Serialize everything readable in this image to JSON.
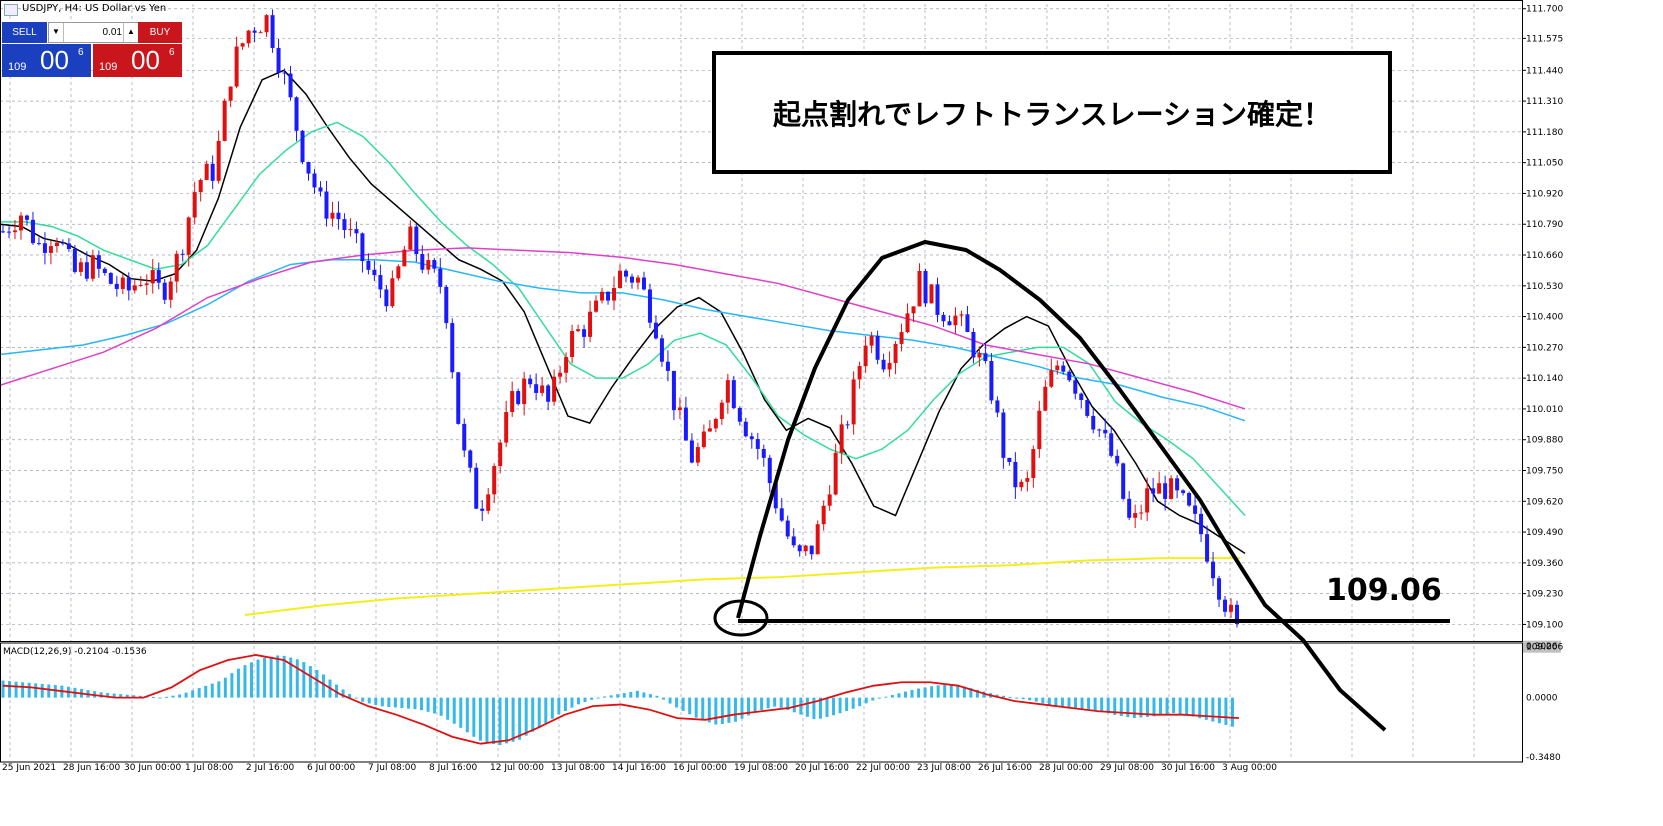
{
  "window": {
    "title": "USDJPY, H4:  US Dollar vs Yen"
  },
  "trade_panel": {
    "sell_label": "SELL",
    "buy_label": "BUY",
    "lot": "0.01",
    "sell_price": {
      "small": "109",
      "big": "00",
      "sup": "6"
    },
    "buy_price": {
      "small": "109",
      "big": "00",
      "sup": "6"
    },
    "sell_color": "#1a3fbf",
    "buy_color": "#c8161c"
  },
  "annotation": {
    "text": "起点割れでレフトトランスレーション確定！"
  },
  "level_label": "109.06",
  "chart_data": [
    {
      "type": "candlestick",
      "title": "",
      "symbol": "USDJPY",
      "timeframe": "H4",
      "current_price": "109.006",
      "y_ticks": [
        "111.700",
        "111.575",
        "111.440",
        "111.310",
        "111.180",
        "111.050",
        "110.920",
        "110.790",
        "110.660",
        "110.530",
        "110.400",
        "110.270",
        "110.140",
        "110.010",
        "109.880",
        "109.750",
        "109.620",
        "109.490",
        "109.360",
        "109.230",
        "109.100"
      ],
      "x_ticks": [
        "25 Jun 2021",
        "28 Jun 16:00",
        "30 Jun 00:00",
        "1 Jul 08:00",
        "2 Jul 16:00",
        "6 Jul 00:00",
        "7 Jul 08:00",
        "8 Jul 16:00",
        "12 Jul 00:00",
        "13 Jul 08:00",
        "14 Jul 16:00",
        "16 Jul 00:00",
        "19 Jul 08:00",
        "20 Jul 16:00",
        "22 Jul 00:00",
        "23 Jul 08:00",
        "26 Jul 16:00",
        "28 Jul 00:00",
        "29 Jul 08:00",
        "30 Jul 16:00",
        "3 Aug 00:00"
      ],
      "ylim": [
        109.03,
        111.72
      ],
      "close_path": [
        110.76,
        110.84,
        110.7,
        110.76,
        110.58,
        110.62,
        110.55,
        110.5,
        110.58,
        110.5,
        110.66,
        110.97,
        111.02,
        111.46,
        111.62,
        111.66,
        111.39,
        111.1,
        110.88,
        110.82,
        110.7,
        110.55,
        110.48,
        110.74,
        110.6,
        110.52,
        109.85,
        109.58,
        109.82,
        110.06,
        110.15,
        110.02,
        110.29,
        110.36,
        110.46,
        110.58,
        110.56,
        110.38,
        110.06,
        109.8,
        109.88,
        110.15,
        109.96,
        109.82,
        109.58,
        109.37,
        109.43,
        109.74,
        110.0,
        110.34,
        110.22,
        110.37,
        110.55,
        110.44,
        110.4,
        110.28,
        110.11,
        109.74,
        109.65,
        110.06,
        110.23,
        110.09,
        109.95,
        109.79,
        109.5,
        109.66,
        109.68,
        109.6,
        109.48,
        109.26,
        109.07
      ],
      "grid": true,
      "legend": "none",
      "series": [
        {
          "name": "",
          "color": "#000000",
          "kind": "ma",
          "values": [
            110.79,
            110.78,
            110.73,
            110.71,
            110.66,
            110.62,
            110.56,
            110.55,
            110.58,
            110.68,
            110.9,
            111.2,
            111.4,
            111.44,
            111.34,
            111.2,
            111.07,
            110.96,
            110.88,
            110.8,
            110.72,
            110.64,
            110.6,
            110.55,
            110.42,
            110.2,
            109.98,
            109.95,
            110.1,
            110.23,
            110.35,
            110.44,
            110.48,
            110.42,
            110.25,
            110.05,
            109.92,
            109.97,
            109.93,
            109.78,
            109.6,
            109.56,
            109.78,
            110.0,
            110.18,
            110.28,
            110.35,
            110.4,
            110.36,
            110.18,
            110.02,
            109.92,
            109.78,
            109.62,
            109.56,
            109.52,
            109.46,
            109.4
          ]
        },
        {
          "name": "",
          "color": "#33dd99",
          "kind": "ma",
          "values": [
            110.8,
            110.8,
            110.78,
            110.74,
            110.68,
            110.64,
            110.6,
            110.62,
            110.7,
            110.85,
            111.0,
            111.1,
            111.18,
            111.22,
            111.16,
            111.05,
            110.92,
            110.8,
            110.7,
            110.62,
            110.52,
            110.36,
            110.2,
            110.14,
            110.14,
            110.2,
            110.3,
            110.33,
            110.28,
            110.14,
            109.98,
            109.9,
            109.84,
            109.8,
            109.84,
            109.92,
            110.05,
            110.16,
            110.23,
            110.25,
            110.27,
            110.27,
            110.2,
            110.04,
            109.95,
            109.88,
            109.8,
            109.68,
            109.56
          ]
        },
        {
          "name": "",
          "color": "#29b6f6",
          "kind": "ma",
          "values": [
            110.24,
            110.26,
            110.28,
            110.32,
            110.37,
            110.45,
            110.55,
            110.62,
            110.64,
            110.64,
            110.63,
            110.59,
            110.55,
            110.52,
            110.5,
            110.5,
            110.47,
            110.43,
            110.4,
            110.37,
            110.34,
            110.32,
            110.3,
            110.27,
            110.23,
            110.19,
            110.14,
            110.11,
            110.06,
            110.02,
            109.96
          ]
        },
        {
          "name": "",
          "color": "#e040c8",
          "kind": "ma",
          "values": [
            110.11,
            110.18,
            110.25,
            110.35,
            110.48,
            110.56,
            110.63,
            110.66,
            110.68,
            110.69,
            110.68,
            110.67,
            110.65,
            110.62,
            110.58,
            110.54,
            110.48,
            110.42,
            110.36,
            110.28,
            110.24,
            110.2,
            110.14,
            110.08,
            110.01
          ]
        },
        {
          "name": "",
          "color": "#f5ee1c",
          "kind": "ma",
          "values": [
            109.14,
            109.18,
            109.21,
            109.23,
            109.25,
            109.27,
            109.29,
            109.3,
            109.32,
            109.34,
            109.35,
            109.37,
            109.38,
            109.38
          ]
        }
      ]
    },
    {
      "type": "bar",
      "title": "MACD(12,26,9) -0.2104 -0.1536",
      "y_ticks": [
        "0.3026",
        "0.0000",
        "-0.3480"
      ],
      "ylim": [
        -0.348,
        0.3026
      ],
      "histogram": [
        0.1,
        0.09,
        0.08,
        0.07,
        0.05,
        0.03,
        0.02,
        0.01,
        0.0,
        0.02,
        0.06,
        0.1,
        0.18,
        0.23,
        0.25,
        0.22,
        0.15,
        0.06,
        -0.02,
        -0.05,
        -0.06,
        -0.07,
        -0.1,
        -0.17,
        -0.25,
        -0.28,
        -0.25,
        -0.18,
        -0.1,
        -0.04,
        0.0,
        0.02,
        0.04,
        0.01,
        -0.06,
        -0.12,
        -0.16,
        -0.14,
        -0.08,
        -0.05,
        -0.09,
        -0.13,
        -0.1,
        -0.06,
        -0.01,
        0.02,
        0.05,
        0.07,
        0.08,
        0.05,
        0.02,
        0.0,
        -0.02,
        -0.05,
        -0.06,
        -0.07,
        -0.1,
        -0.12,
        -0.11,
        -0.09,
        -0.11,
        -0.14,
        -0.17
      ],
      "series": [
        {
          "name": "",
          "color": "#dd1111",
          "kind": "signal",
          "values": [
            0.07,
            0.06,
            0.04,
            0.02,
            0.0,
            0.0,
            0.06,
            0.16,
            0.22,
            0.25,
            0.22,
            0.12,
            0.02,
            -0.05,
            -0.1,
            -0.16,
            -0.23,
            -0.27,
            -0.25,
            -0.18,
            -0.1,
            -0.05,
            -0.04,
            -0.07,
            -0.12,
            -0.13,
            -0.1,
            -0.08,
            -0.06,
            -0.02,
            0.03,
            0.07,
            0.09,
            0.09,
            0.07,
            0.02,
            -0.02,
            -0.04,
            -0.06,
            -0.08,
            -0.09,
            -0.1,
            -0.1,
            -0.11,
            -0.12
          ]
        }
      ]
    }
  ]
}
